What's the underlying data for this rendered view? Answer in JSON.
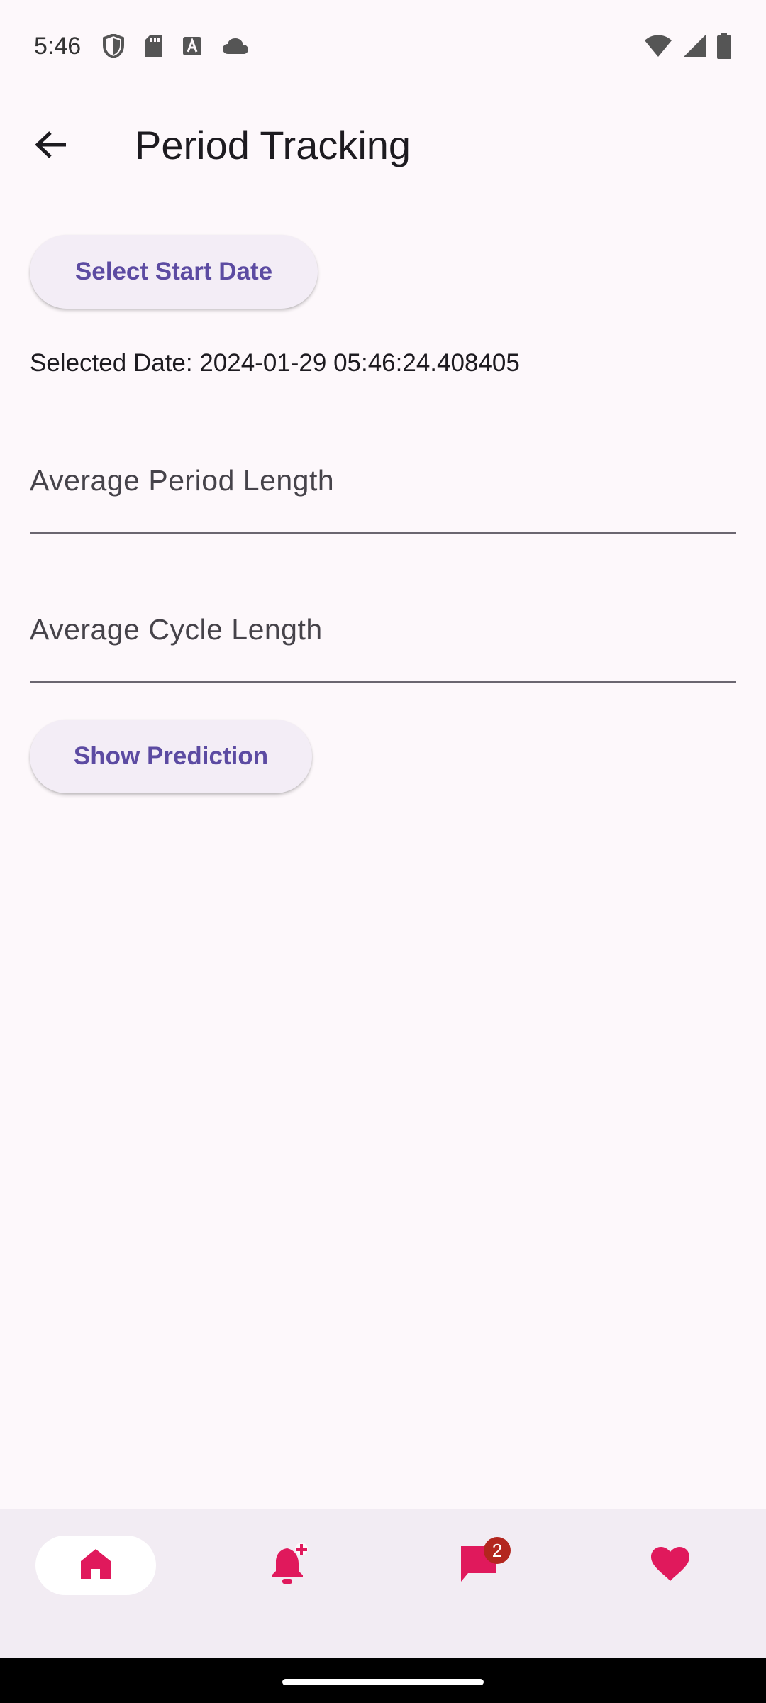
{
  "status_bar": {
    "time": "5:46",
    "left_icons": [
      "shield-icon",
      "sd-card-icon",
      "text-a-icon",
      "cloud-icon"
    ],
    "right_icons": [
      "wifi-icon",
      "signal-icon",
      "battery-icon"
    ]
  },
  "app_bar": {
    "back_icon": "arrow-back-icon",
    "title": "Period Tracking"
  },
  "main": {
    "select_start_button": "Select Start Date",
    "selected_date_text": "Selected Date: 2024-01-29 05:46:24.408405",
    "average_period_field": {
      "label": "Average Period Length",
      "value": ""
    },
    "average_cycle_field": {
      "label": "Average Cycle Length",
      "value": ""
    },
    "show_prediction_button": "Show Prediction"
  },
  "bottom_nav": {
    "items": [
      {
        "icon": "home-icon",
        "selected": true
      },
      {
        "icon": "notification-add-icon",
        "selected": false
      },
      {
        "icon": "chat-icon",
        "selected": false,
        "badge": "2"
      },
      {
        "icon": "heart-icon",
        "selected": false
      }
    ]
  },
  "colors": {
    "background": "#fdf8fb",
    "primary_text_button": "#5c4ba2",
    "nav_icon": "#e0195c",
    "badge": "#b3261e",
    "nav_bar": "#f2ecf3"
  }
}
